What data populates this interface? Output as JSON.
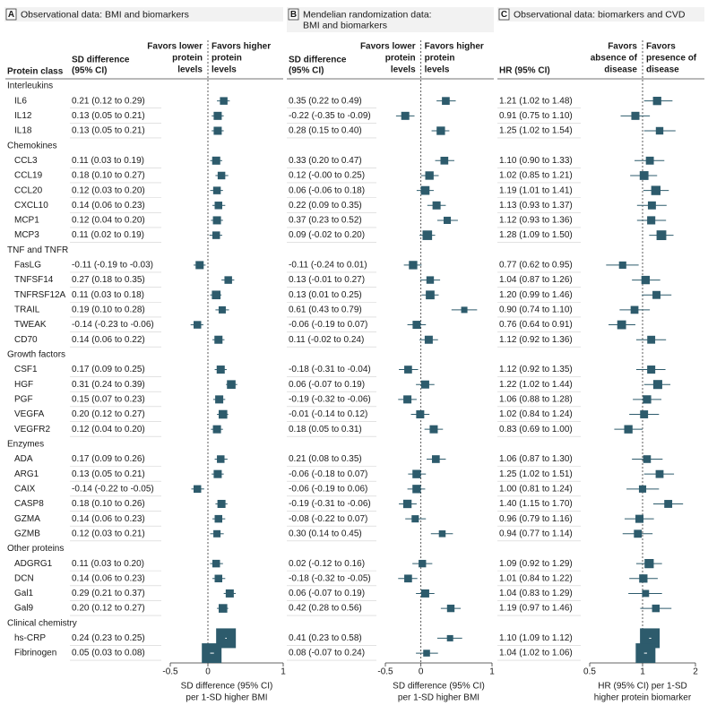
{
  "protein_class_header": "Protein class",
  "groups": [
    {
      "name": "Interleukins",
      "proteins": [
        "IL6",
        "IL12",
        "IL18"
      ]
    },
    {
      "name": "Chemokines",
      "proteins": [
        "CCL3",
        "CCL19",
        "CCL20",
        "CXCL10",
        "MCP1",
        "MCP3"
      ]
    },
    {
      "name": "TNF and TNFR",
      "proteins": [
        "FasLG",
        "TNFSF14",
        "TNFRSF12A",
        "TRAIL",
        "TWEAK",
        "CD70"
      ]
    },
    {
      "name": "Growth factors",
      "proteins": [
        "CSF1",
        "HGF",
        "PGF",
        "VEGFA",
        "VEGFR2"
      ]
    },
    {
      "name": "Enzymes",
      "proteins": [
        "ADA",
        "ARG1",
        "CAIX",
        "CASP8",
        "GZMA",
        "GZMB"
      ]
    },
    {
      "name": "Other proteins",
      "proteins": [
        "ADGRG1",
        "DCN",
        "Gal1",
        "Gal9"
      ]
    },
    {
      "name": "Clinical chemistry",
      "proteins": [
        "hs-CRP",
        "Fibrinogen"
      ]
    }
  ],
  "chart_data": [
    {
      "type": "forest",
      "panel": "A",
      "title": [
        "Observational data: BMI and biomarkers"
      ],
      "ci_header": [
        "SD difference",
        "(95% CI)"
      ],
      "favors_left": [
        "Favors lower",
        "protein",
        "levels"
      ],
      "favors_right": [
        "Favors higher",
        "protein",
        "levels"
      ],
      "xlabel": [
        "SD difference (95% CI)",
        "per 1-SD higher BMI"
      ],
      "xlim": [
        -0.5,
        1
      ],
      "xticks": [
        -0.5,
        0,
        1
      ],
      "reference": 0,
      "log": false,
      "color": "#2d5b6c",
      "values": [
        0.21,
        0.13,
        0.13,
        0.11,
        0.18,
        0.12,
        0.14,
        0.12,
        0.11,
        -0.11,
        0.27,
        0.11,
        0.19,
        -0.14,
        0.14,
        0.17,
        0.31,
        0.15,
        0.2,
        0.12,
        0.17,
        0.13,
        -0.14,
        0.18,
        0.14,
        0.12,
        0.11,
        0.14,
        0.29,
        0.2,
        0.24,
        0.05
      ],
      "lower": [
        0.12,
        0.05,
        0.05,
        0.03,
        0.1,
        0.03,
        0.06,
        0.04,
        0.02,
        -0.19,
        0.18,
        0.03,
        0.1,
        -0.23,
        0.06,
        0.09,
        0.24,
        0.07,
        0.12,
        0.04,
        0.09,
        0.05,
        -0.22,
        0.1,
        0.06,
        0.03,
        0.03,
        0.06,
        0.21,
        0.12,
        0.23,
        0.03
      ],
      "upper": [
        0.29,
        0.21,
        0.21,
        0.19,
        0.27,
        0.2,
        0.23,
        0.2,
        0.19,
        -0.03,
        0.35,
        0.18,
        0.28,
        -0.06,
        0.22,
        0.25,
        0.39,
        0.23,
        0.27,
        0.2,
        0.26,
        0.21,
        -0.05,
        0.26,
        0.23,
        0.21,
        0.2,
        0.23,
        0.37,
        0.27,
        0.25,
        0.08
      ],
      "value_labels": [
        "0.21 (0.12 to 0.29)",
        "0.13 (0.05 to 0.21)",
        "0.13 (0.05 to 0.21)",
        "0.11 (0.03 to 0.19)",
        "0.18 (0.10 to 0.27)",
        "0.12 (0.03 to 0.20)",
        "0.14 (0.06 to 0.23)",
        "0.12 (0.04 to 0.20)",
        "0.11 (0.02 to 0.19)",
        "-0.11 (-0.19 to -0.03)",
        "0.27 (0.18 to 0.35)",
        "0.11 (0.03 to 0.18)",
        "0.19 (0.10 to 0.28)",
        "-0.14 (-0.23 to -0.06)",
        "0.14 (0.06 to 0.22)",
        "0.17 (0.09 to 0.25)",
        "0.31 (0.24 to 0.39)",
        "0.15 (0.07 to 0.23)",
        "0.20 (0.12 to 0.27)",
        "0.12 (0.04 to 0.20)",
        "0.17 (0.09 to 0.26)",
        "0.13 (0.05 to 0.21)",
        "-0.14 (-0.22 to -0.05)",
        "0.18 (0.10 to 0.26)",
        "0.14 (0.06 to 0.23)",
        "0.12 (0.03 to 0.21)",
        "0.11 (0.03 to 0.20)",
        "0.14 (0.06 to 0.23)",
        "0.29 (0.21 to 0.37)",
        "0.20 (0.12 to 0.27)",
        "0.24 (0.23 to 0.25)",
        "0.05 (0.03 to 0.08)"
      ]
    },
    {
      "type": "forest",
      "panel": "B",
      "title": [
        "Mendelian randomization data:",
        "BMI and biomarkers"
      ],
      "ci_header": [
        "SD difference",
        "(95% CI)"
      ],
      "favors_left": [
        "Favors lower",
        "protein",
        "levels"
      ],
      "favors_right": [
        "Favors higher",
        "protein",
        "levels"
      ],
      "xlabel": [
        "SD difference (95% CI)",
        "per 1-SD higher BMI"
      ],
      "xlim": [
        -0.5,
        1
      ],
      "xticks": [
        -0.5,
        0,
        1
      ],
      "reference": 0,
      "log": false,
      "color": "#2d5b6c",
      "values": [
        0.35,
        -0.22,
        0.28,
        0.33,
        0.12,
        0.06,
        0.22,
        0.37,
        0.09,
        -0.11,
        0.13,
        0.13,
        0.61,
        -0.06,
        0.11,
        -0.18,
        0.06,
        -0.19,
        -0.01,
        0.18,
        0.21,
        -0.06,
        -0.06,
        -0.19,
        -0.08,
        0.3,
        0.02,
        -0.18,
        0.06,
        0.42,
        0.41,
        0.08
      ],
      "lower": [
        0.22,
        -0.35,
        0.15,
        0.2,
        -0.0,
        -0.06,
        0.09,
        0.23,
        -0.02,
        -0.24,
        -0.01,
        0.01,
        0.43,
        -0.19,
        -0.02,
        -0.31,
        -0.07,
        -0.32,
        -0.14,
        0.05,
        0.08,
        -0.18,
        -0.19,
        -0.31,
        -0.22,
        0.14,
        -0.12,
        -0.32,
        -0.07,
        0.28,
        0.23,
        -0.07
      ],
      "upper": [
        0.49,
        -0.09,
        0.4,
        0.47,
        0.25,
        0.18,
        0.35,
        0.52,
        0.2,
        0.01,
        0.27,
        0.25,
        0.79,
        0.07,
        0.24,
        -0.04,
        0.19,
        -0.06,
        0.12,
        0.31,
        0.35,
        0.07,
        0.06,
        -0.06,
        0.07,
        0.45,
        0.16,
        -0.05,
        0.19,
        0.56,
        0.58,
        0.24
      ],
      "value_labels": [
        "0.35 (0.22 to 0.49)",
        "-0.22 (-0.35 to -0.09)",
        "0.28 (0.15 to 0.40)",
        "0.33 (0.20 to 0.47)",
        "0.12 (-0.00 to 0.25)",
        "0.06 (-0.06 to 0.18)",
        "0.22 (0.09 to 0.35)",
        "0.37 (0.23 to 0.52)",
        "0.09 (-0.02 to 0.20)",
        "-0.11 (-0.24 to 0.01)",
        "0.13 (-0.01 to 0.27)",
        "0.13 (0.01 to 0.25)",
        "0.61 (0.43 to 0.79)",
        "-0.06 (-0.19 to 0.07)",
        "0.11 (-0.02 to 0.24)",
        "-0.18 (-0.31 to -0.04)",
        "0.06 (-0.07 to 0.19)",
        "-0.19 (-0.32 to -0.06)",
        "-0.01 (-0.14 to 0.12)",
        "0.18 (0.05 to 0.31)",
        "0.21 (0.08 to 0.35)",
        "-0.06 (-0.18 to 0.07)",
        "-0.06 (-0.19 to 0.06)",
        "-0.19 (-0.31 to -0.06)",
        "-0.08 (-0.22 to 0.07)",
        "0.30 (0.14 to 0.45)",
        "0.02 (-0.12 to 0.16)",
        "-0.18 (-0.32 to -0.05)",
        "0.06 (-0.07 to 0.19)",
        "0.42 (0.28 to 0.56)",
        "0.41 (0.23 to 0.58)",
        "0.08 (-0.07 to 0.24)"
      ]
    },
    {
      "type": "forest",
      "panel": "C",
      "title": [
        "Observational data: biomarkers and CVD"
      ],
      "ci_header": [
        "HR (95% CI)"
      ],
      "favors_left": [
        "Favors",
        "absence of",
        "disease"
      ],
      "favors_right": [
        "Favors",
        "presence of",
        "disease"
      ],
      "xlabel": [
        "HR (95% CI) per 1-SD",
        "higher protein biomarker"
      ],
      "xlim": [
        0.5,
        2
      ],
      "xticks": [
        0.5,
        1,
        2
      ],
      "reference": 1,
      "log": true,
      "color": "#2d5b6c",
      "values": [
        1.21,
        0.91,
        1.25,
        1.1,
        1.02,
        1.19,
        1.13,
        1.12,
        1.28,
        0.77,
        1.04,
        1.2,
        0.9,
        0.76,
        1.12,
        1.12,
        1.22,
        1.06,
        1.02,
        0.83,
        1.06,
        1.25,
        1.0,
        1.4,
        0.96,
        0.94,
        1.09,
        1.01,
        1.04,
        1.19,
        1.1,
        1.04
      ],
      "lower": [
        1.02,
        0.75,
        1.02,
        0.9,
        0.85,
        1.01,
        0.93,
        0.93,
        1.09,
        0.62,
        0.87,
        0.99,
        0.74,
        0.64,
        0.92,
        0.92,
        1.02,
        0.88,
        0.84,
        0.69,
        0.87,
        1.02,
        0.81,
        1.15,
        0.79,
        0.77,
        0.92,
        0.84,
        0.83,
        0.97,
        1.09,
        1.02
      ],
      "upper": [
        1.48,
        1.1,
        1.54,
        1.33,
        1.21,
        1.41,
        1.37,
        1.36,
        1.5,
        0.95,
        1.26,
        1.46,
        1.1,
        0.91,
        1.36,
        1.35,
        1.44,
        1.28,
        1.24,
        1.0,
        1.3,
        1.51,
        1.24,
        1.7,
        1.16,
        1.14,
        1.29,
        1.22,
        1.29,
        1.46,
        1.12,
        1.06
      ],
      "value_labels": [
        "1.21 (1.02 to 1.48)",
        "0.91 (0.75 to 1.10)",
        "1.25 (1.02 to 1.54)",
        "1.10 (0.90 to 1.33)",
        "1.02 (0.85 to 1.21)",
        "1.19 (1.01 to 1.41)",
        "1.13 (0.93 to 1.37)",
        "1.12 (0.93 to 1.36)",
        "1.28 (1.09 to 1.50)",
        "0.77 (0.62 to 0.95)",
        "1.04 (0.87 to 1.26)",
        "1.20 (0.99 to 1.46)",
        "0.90 (0.74 to 1.10)",
        "0.76 (0.64 to 0.91)",
        "1.12 (0.92 to 1.36)",
        "1.12 (0.92 to 1.35)",
        "1.22 (1.02 to 1.44)",
        "1.06 (0.88 to 1.28)",
        "1.02 (0.84 to 1.24)",
        "0.83 (0.69 to 1.00)",
        "1.06 (0.87 to 1.30)",
        "1.25 (1.02 to 1.51)",
        "1.00 (0.81 to 1.24)",
        "1.40 (1.15 to 1.70)",
        "0.96 (0.79 to 1.16)",
        "0.94 (0.77 to 1.14)",
        "1.09 (0.92 to 1.29)",
        "1.01 (0.84 to 1.22)",
        "1.04 (0.83 to 1.29)",
        "1.19 (0.97 to 1.46)",
        "1.10 (1.09 to 1.12)",
        "1.04 (1.02 to 1.06)"
      ]
    }
  ]
}
